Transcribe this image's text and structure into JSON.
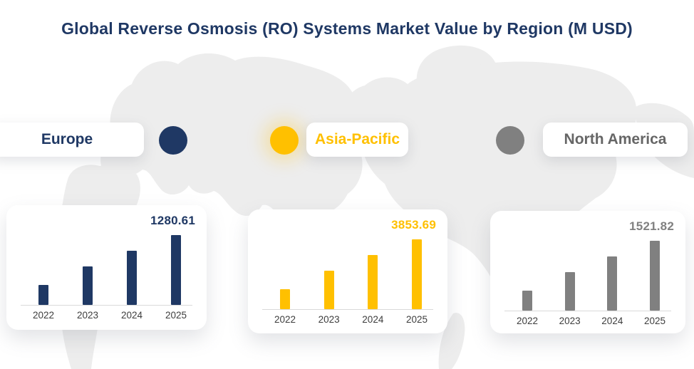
{
  "title": "Global Reverse Osmosis (RO) Systems Market Value by Region (M USD)",
  "colors": {
    "title": "#1F3864",
    "europe": "#1F3864",
    "asia_pacific": "#FFC000",
    "north_america": "#808080",
    "map_landmass": "#EDEDED",
    "axis_line": "#D9D9D9",
    "year_label": "#3D3D3D"
  },
  "legend": [
    {
      "label": "Europe",
      "circle_color": "#1F3864",
      "label_color": "#1F3864"
    },
    {
      "label": "Asia-Pacific",
      "circle_color": "#FFC000",
      "label_color": "#FFC000"
    },
    {
      "label": "North America",
      "circle_color": "#808080",
      "label_color": "#666666"
    }
  ],
  "chart_data": [
    {
      "type": "bar",
      "region": "Europe",
      "categories": [
        "2022",
        "2023",
        "2024",
        "2025"
      ],
      "values": [
        365,
        706,
        993,
        1280.61
      ],
      "labeled_category": "2025",
      "data_label": "1280.61",
      "values_estimated_except_labeled": true,
      "unit": "M USD",
      "color": "#1F3864"
    },
    {
      "type": "bar",
      "region": "Asia-Pacific",
      "categories": [
        "2022",
        "2023",
        "2024",
        "2025"
      ],
      "values": [
        1101,
        2123,
        2989,
        3853.69
      ],
      "labeled_category": "2025",
      "data_label": "3853.69",
      "values_estimated_except_labeled": true,
      "unit": "M USD",
      "color": "#FFC000"
    },
    {
      "type": "bar",
      "region": "North America",
      "categories": [
        "2022",
        "2023",
        "2024",
        "2025"
      ],
      "values": [
        435,
        839,
        1180,
        1521.82
      ],
      "labeled_category": "2025",
      "data_label": "1521.82",
      "values_estimated_except_labeled": true,
      "unit": "M USD",
      "color": "#808080"
    }
  ]
}
